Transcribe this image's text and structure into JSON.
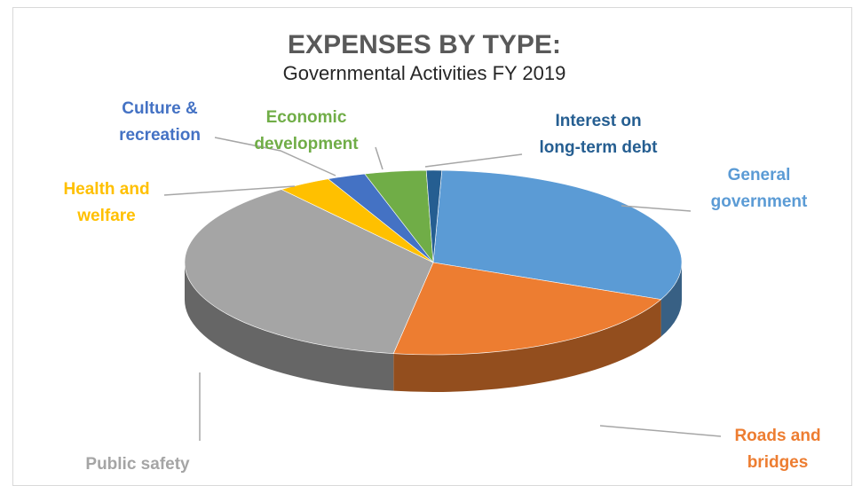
{
  "chart_data": {
    "type": "pie",
    "title": "EXPENSES BY TYPE:",
    "subtitle": "Governmental Activities FY 2019",
    "series": [
      {
        "slices": [
          {
            "label_lines": [
              "General",
              "government"
            ],
            "value": 31,
            "color": "#5b9bd5"
          },
          {
            "label_lines": [
              "Roads and",
              "bridges"
            ],
            "value": 21,
            "color": "#ed7d31"
          },
          {
            "label_lines": [
              "Public safety"
            ],
            "value": 37,
            "color": "#a5a5a5"
          },
          {
            "label_lines": [
              "Health and",
              "welfare"
            ],
            "value": 3.5,
            "color": "#ffc000"
          },
          {
            "label_lines": [
              "Culture &",
              "recreation"
            ],
            "value": 2.5,
            "color": "#4472c4"
          },
          {
            "label_lines": [
              "Economic",
              "development"
            ],
            "value": 4,
            "color": "#70ad47"
          },
          {
            "label_lines": [
              "Interest on",
              "long-term debt"
            ],
            "value": 1,
            "color": "#255e91"
          }
        ]
      }
    ],
    "style": "3d",
    "legend": "none (callout labels)"
  }
}
